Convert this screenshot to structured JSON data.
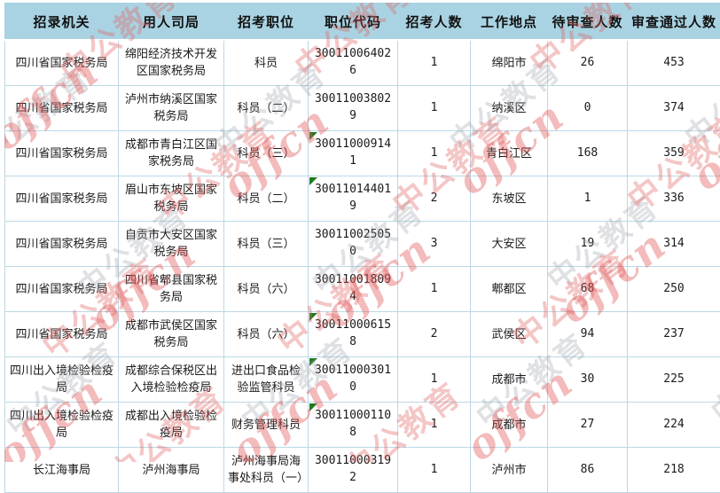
{
  "chart_data": {
    "type": "table",
    "title": "",
    "columns": [
      "招录机关",
      "用人司局",
      "招考职位",
      "职位代码",
      "招考人数",
      "工作地点",
      "待审查人数",
      "审查通过人数"
    ],
    "rows": [
      [
        "四川省国家税务局",
        "绵阳经济技术开发区国家税务局",
        "科员",
        "300110064026",
        "1",
        "绵阳市",
        "26",
        "453"
      ],
      [
        "四川省国家税务局",
        "泸州市纳溪区国家税务局",
        "科员（二）",
        "300110038029",
        "1",
        "纳溪区",
        "0",
        "374"
      ],
      [
        "四川省国家税务局",
        "成都市青白江区国家税务局",
        "科员（三）",
        "300110009141",
        "1",
        "青白江区",
        "168",
        "359"
      ],
      [
        "四川省国家税务局",
        "眉山市东坡区国家税务局",
        "科员（二）",
        "300110144019",
        "2",
        "东坡区",
        "1",
        "336"
      ],
      [
        "四川省国家税务局",
        "自贡市大安区国家税务局",
        "科员（三）",
        "300110025050",
        "3",
        "大安区",
        "19",
        "314"
      ],
      [
        "四川省国家税务局",
        "四川省郫县国家税务局",
        "科员（六）",
        "300110018094",
        "1",
        "郫都区",
        "68",
        "250"
      ],
      [
        "四川省国家税务局",
        "成都市武侯区国家税务局",
        "科员（六）",
        "300110006158",
        "2",
        "武侯区",
        "94",
        "237"
      ],
      [
        "四川出入境检验检疫局",
        "成都综合保税区出入境检验检疫局",
        "进出口食品检验监管科员",
        "300110003010",
        "1",
        "成都市",
        "30",
        "225"
      ],
      [
        "四川出入境检验检疫局",
        "成都出入境检验检疫局",
        "财务管理科员",
        "300110001108",
        "1",
        "成都市",
        "27",
        "224"
      ],
      [
        "长江海事局",
        "泸州海事局",
        "泸州海事局海事处科员（一）",
        "300110003192",
        "1",
        "泸州市",
        "86",
        "218"
      ]
    ],
    "flag_marker_row_indices": [
      2,
      3,
      6,
      7,
      8
    ],
    "layout": {
      "grid": "on",
      "header_position": "top"
    }
  },
  "watermark": {
    "script": "offcn",
    "brand": "中公教育"
  },
  "colors": {
    "header_bg": "#a9d3e2",
    "grid_border": "#bcd8e6",
    "flag_green": "#1e7b1e",
    "watermark_red": "#e05454",
    "watermark_gray": "#969ca6",
    "text": "#1a1a1a"
  }
}
